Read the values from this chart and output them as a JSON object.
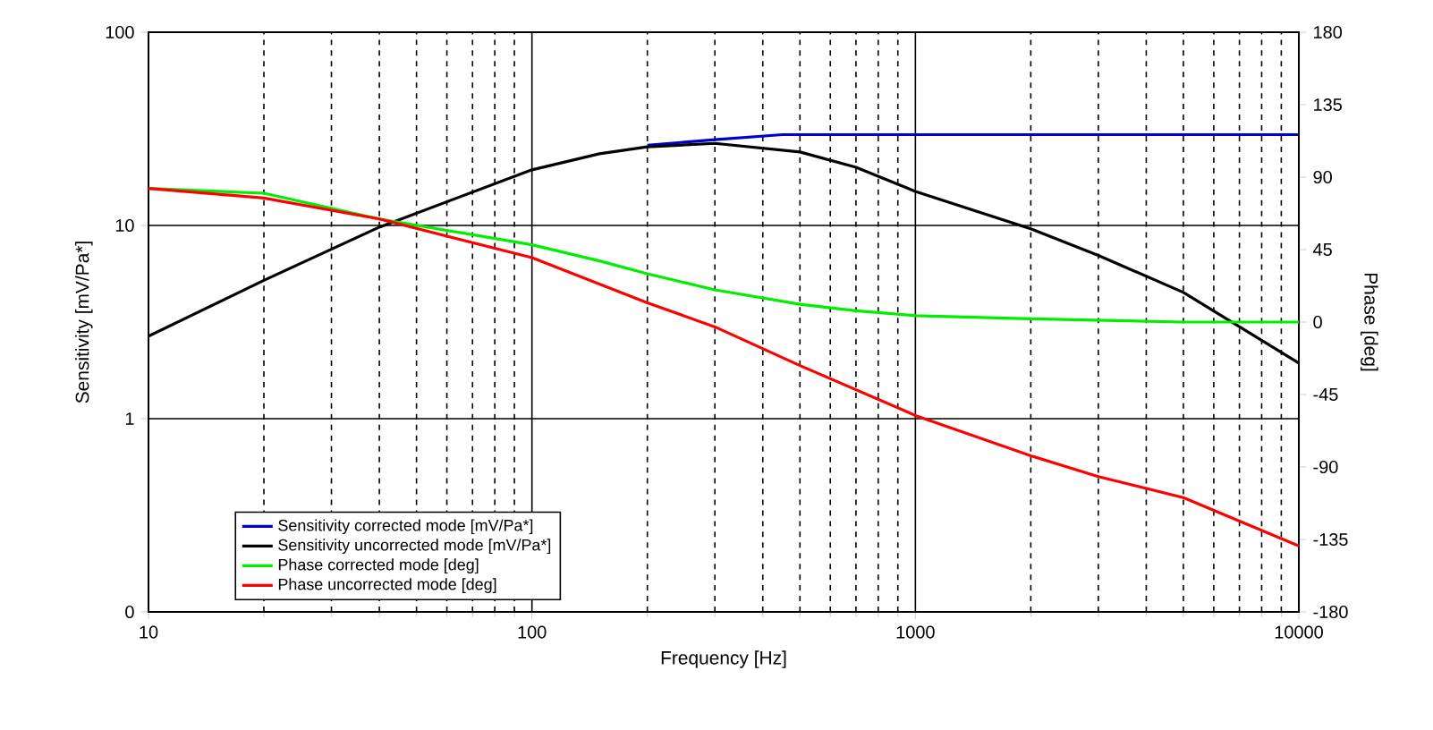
{
  "chart_data": {
    "type": "line",
    "xlabel": "Frequency [Hz]",
    "ylabel": "Sensitivity [mV/Pa*]",
    "y2label": "Phase [deg]",
    "log": "xy",
    "grid": true,
    "legend": "bottom left",
    "marker": "none",
    "line_style": "solid",
    "xlim": [
      10,
      10000
    ],
    "xticks": [
      10,
      100,
      1000,
      10000
    ],
    "ylim": [
      0.1,
      100
    ],
    "yticks": [
      {
        "value": 0.1,
        "label": "0"
      },
      1,
      10,
      100
    ],
    "y2lim": [
      -180,
      180
    ],
    "y2ticks": [
      -180,
      -135,
      -90,
      -45,
      0,
      45,
      90,
      135,
      180
    ],
    "series": [
      {
        "name": "Sensitivity corrected mode [mV/Pa*]",
        "color": "#0000cc",
        "axis": "y",
        "x": [
          200,
          300,
          450,
          1000,
          2000,
          5000,
          10000
        ],
        "values": [
          26,
          27.8,
          29.5,
          29.5,
          29.5,
          29.5,
          29.5
        ]
      },
      {
        "name": "Sensitivity uncorrected mode [mV/Pa*]",
        "color": "#000000",
        "axis": "y",
        "x": [
          10,
          20,
          40,
          100,
          150,
          200,
          300,
          500,
          700,
          1000,
          2000,
          3000,
          5000,
          10000
        ],
        "values": [
          2.67,
          5.2,
          9.8,
          19.4,
          23.5,
          25.5,
          26.6,
          24,
          20,
          15,
          9.6,
          7,
          4.5,
          1.94
        ]
      },
      {
        "name": "Phase corrected mode [deg]",
        "color": "#00ee00",
        "axis": "y2",
        "x": [
          10,
          20,
          40,
          100,
          150,
          200,
          300,
          500,
          700,
          1000,
          2000,
          5000,
          10000
        ],
        "values": [
          83,
          80,
          64,
          48,
          38,
          30,
          20,
          11,
          7,
          4,
          2,
          0,
          0
        ]
      },
      {
        "name": "Phase uncorrected mode [deg]",
        "color": "#ff0000",
        "axis": "y2",
        "x": [
          10,
          20,
          40,
          100,
          200,
          300,
          500,
          1000,
          2000,
          3000,
          5000,
          10000
        ],
        "values": [
          83,
          77,
          64,
          40,
          12,
          -3,
          -27,
          -58,
          -83,
          -96,
          -109,
          -139
        ]
      }
    ]
  }
}
